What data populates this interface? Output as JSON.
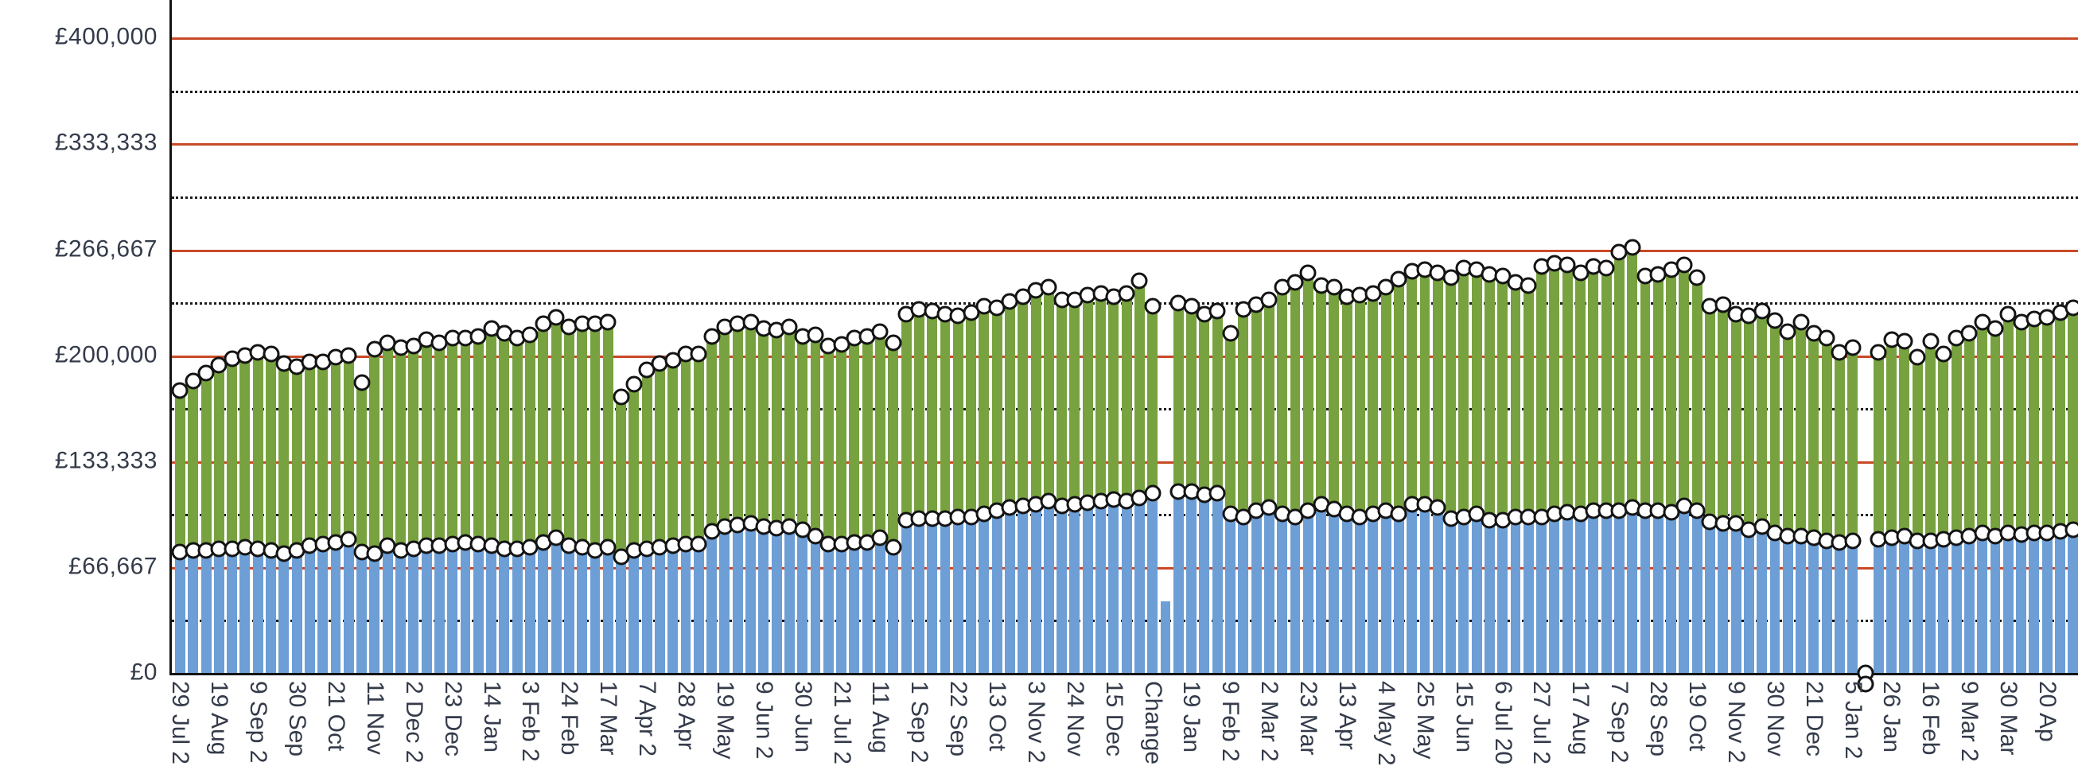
{
  "chart_data": {
    "type": "bar",
    "stacked": true,
    "marker_style": "white-circle-black-outline",
    "grid": "red solid major lines every 66667, black dotted minor lines every 33333, drawn behind bars",
    "legend_position": "none",
    "xlabel": "",
    "ylabel": "",
    "y_max": 423667,
    "y_ticks": [
      {
        "label": "£400,000",
        "value": 400000
      },
      {
        "label": "£333,333",
        "value": 333333
      },
      {
        "label": "£266,667",
        "value": 266667
      },
      {
        "label": "£200,000",
        "value": 200000
      },
      {
        "label": "£133,333",
        "value": 133333
      },
      {
        "label": "£66,667",
        "value": 66667
      },
      {
        "label": "£0",
        "value": 0
      }
    ],
    "y_minor_gridlines": [
      366667,
      300000,
      233333,
      166667,
      100000,
      33333
    ],
    "x_label_every_n_bars": 3,
    "x_tick_labels": [
      "29 Jul 2",
      "19 Aug",
      "9 Sep 2",
      "30 Sep",
      "21 Oct",
      "11 Nov",
      "2 Dec 2",
      "23 Dec",
      "14 Jan",
      "3 Feb 2",
      "24 Feb",
      "17 Mar",
      "7 Apr 2",
      "28 Apr",
      "19 May",
      "9 Jun 2",
      "30 Jun",
      "21 Jul 2",
      "11 Aug",
      "1 Sep 2",
      "22 Sep",
      "13 Oct",
      "3 Nov 2",
      "24 Nov",
      "15 Dec",
      "Change",
      "19 Jan",
      "9 Feb 2",
      "2 Mar 2",
      "23 Mar",
      "13 Apr",
      "4 May 2",
      "25 May",
      "15 Jun",
      "6 Jul 20",
      "27 Jul 2",
      "17 Aug",
      "7 Sep 2",
      "28 Sep",
      "19 Oct",
      "9 Nov 2",
      "30 Nov",
      "21 Dec",
      "5 Jan 2",
      "26 Jan",
      "16 Feb",
      "9 Mar 2",
      "30 Mar",
      "20 Ap"
    ],
    "no_marker_bars": [
      77
    ],
    "zero_value_bars": [
      131
    ],
    "series": [
      {
        "role": "lower-stack",
        "color": "#6D9ED6",
        "values": [
          76000,
          77000,
          77000,
          78000,
          78000,
          79000,
          78000,
          77000,
          75000,
          77000,
          80000,
          81000,
          82000,
          84000,
          76000,
          75000,
          80000,
          77000,
          78000,
          80000,
          80000,
          81000,
          82000,
          81000,
          80000,
          78000,
          78000,
          79000,
          82000,
          85000,
          80000,
          79000,
          77000,
          79000,
          73000,
          77000,
          78000,
          79000,
          80000,
          81000,
          81000,
          89000,
          92000,
          93000,
          94000,
          92000,
          91000,
          92000,
          90000,
          86000,
          81000,
          81000,
          82000,
          82000,
          85000,
          79000,
          96000,
          97000,
          97000,
          97000,
          98000,
          98000,
          100000,
          102000,
          104000,
          105000,
          106000,
          108000,
          105000,
          106000,
          107000,
          108000,
          109000,
          108000,
          110000,
          113000,
          45000,
          114000,
          114000,
          112000,
          113000,
          100000,
          98000,
          102000,
          104000,
          100000,
          98000,
          102000,
          106000,
          103000,
          100000,
          98000,
          100000,
          102000,
          100000,
          106000,
          106000,
          104000,
          97000,
          98000,
          100000,
          96000,
          96000,
          98000,
          98000,
          98000,
          100000,
          101000,
          100000,
          102000,
          102000,
          102000,
          104000,
          102000,
          102000,
          101000,
          105000,
          102000,
          95000,
          94000,
          94000,
          90000,
          92000,
          88000,
          86000,
          86000,
          85000,
          83000,
          82000,
          83000,
          0,
          84000,
          85000,
          86000,
          83000,
          83000,
          84000,
          85000,
          86000,
          88000,
          86000,
          88000,
          87000,
          88000,
          88000,
          89000,
          90000
        ]
      },
      {
        "role": "stack-total",
        "color": "#77A23F",
        "values": [
          178000,
          184000,
          189000,
          194000,
          198000,
          200000,
          202000,
          201000,
          195000,
          193000,
          196000,
          196000,
          199000,
          200000,
          183000,
          204000,
          208000,
          205000,
          206000,
          210000,
          208000,
          211000,
          211000,
          212000,
          217000,
          214000,
          211000,
          213000,
          220000,
          224000,
          218000,
          220000,
          220000,
          221000,
          174000,
          182000,
          191000,
          195000,
          197000,
          201000,
          201000,
          212000,
          218000,
          220000,
          221000,
          217000,
          216000,
          218000,
          212000,
          213000,
          206000,
          207000,
          211000,
          212000,
          215000,
          208000,
          226000,
          229000,
          228000,
          226000,
          225000,
          227000,
          231000,
          230000,
          234000,
          237000,
          241000,
          243000,
          235000,
          235000,
          238000,
          239000,
          237000,
          239000,
          247000,
          231000,
          45000,
          233000,
          231000,
          226000,
          228000,
          214000,
          229000,
          232000,
          235000,
          243000,
          246000,
          252000,
          244000,
          243000,
          237000,
          238000,
          239000,
          243000,
          248000,
          253000,
          254000,
          252000,
          249000,
          255000,
          254000,
          251000,
          250000,
          246000,
          244000,
          256000,
          258000,
          257000,
          252000,
          256000,
          255000,
          265000,
          268000,
          250000,
          251000,
          254000,
          257000,
          249000,
          231000,
          232000,
          226000,
          225000,
          228000,
          222000,
          215000,
          221000,
          214000,
          211000,
          202000,
          205000,
          0,
          202000,
          210000,
          209000,
          199000,
          209000,
          201000,
          211000,
          214000,
          221000,
          217000,
          226000,
          221000,
          223000,
          224000,
          227000,
          230000
        ]
      }
    ]
  },
  "colors": {
    "bar_green": "#77A23F",
    "bar_blue": "#6D9ED6",
    "grid_major_red": "#C74A26",
    "grid_minor_black": "#1b1b1b",
    "axis_black": "#141414",
    "marker_fill": "#FFFFFF",
    "marker_stroke": "#141414",
    "text": "#343B4A",
    "background": "#FFFFFF"
  }
}
